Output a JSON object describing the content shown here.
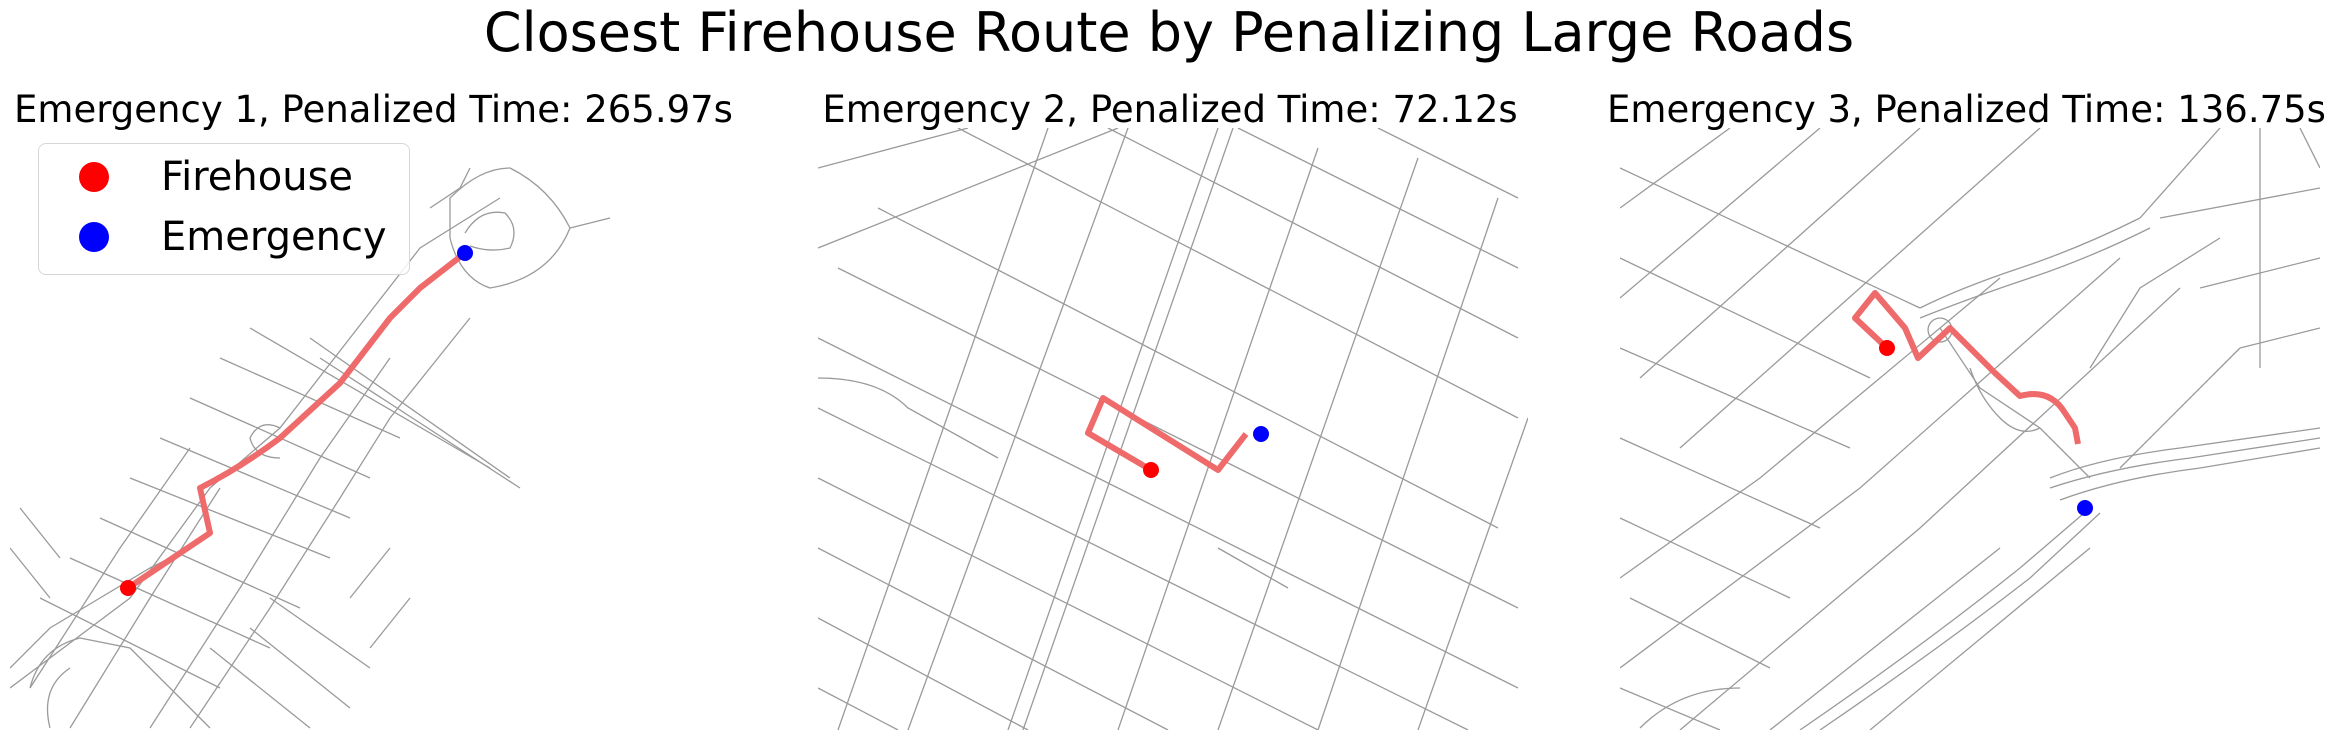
{
  "figure": {
    "title": "Closest Firehouse Route by Penalizing Large Roads"
  },
  "legend": {
    "items": [
      {
        "label": "Firehouse",
        "color": "#ff0000"
      },
      {
        "label": "Emergency",
        "color": "#0000ff"
      }
    ]
  },
  "panels": [
    {
      "title": "Emergency 1, Penalized Time: 265.97s"
    },
    {
      "title": "Emergency 2, Penalized Time: 72.12s"
    },
    {
      "title": "Emergency 3, Penalized Time: 136.75s"
    }
  ],
  "colors": {
    "route": "#ef6a6a",
    "road": "#9a9a9a",
    "firehouse": "#ff0000",
    "emergency": "#0000ff"
  }
}
